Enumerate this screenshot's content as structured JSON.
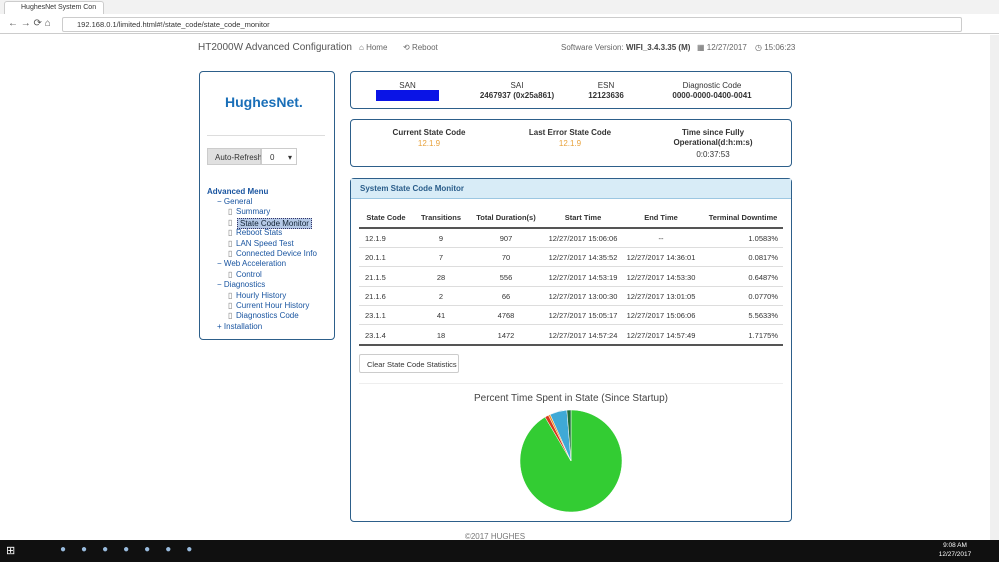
{
  "browser": {
    "tab_title": "HughesNet System Con",
    "url": "192.168.0.1/limited.html#!/state_code/state_code_monitor"
  },
  "header": {
    "title": "HT2000W Advanced Configuration",
    "home": "Home",
    "reboot": "Reboot",
    "software_label": "Software Version:",
    "software_version": "WIFI_3.4.3.35 (M)",
    "date": "12/27/2017",
    "time": "15:06:23"
  },
  "sidebar": {
    "logo": "HughesNet.",
    "auto_refresh": "Auto-Refresh",
    "refresh_value": "0",
    "menu_title": "Advanced Menu",
    "menu": [
      {
        "label": "General",
        "items": [
          "Summary",
          "State Code Monitor",
          "Reboot Stats",
          "LAN Speed Test",
          "Connected Device Info"
        ]
      },
      {
        "label": "Web Acceleration",
        "items": [
          "Control"
        ]
      },
      {
        "label": "Diagnostics",
        "items": [
          "Hourly History",
          "Current Hour History",
          "Diagnostics Code"
        ]
      },
      {
        "label": "Installation"
      }
    ]
  },
  "info": {
    "san_label": "SAN",
    "sai_label": "SAI",
    "sai": "2467937 (0x25a861)",
    "esn_label": "ESN",
    "esn": "12123636",
    "diag_label": "Diagnostic Code",
    "diag": "0000-0000-0400-0041"
  },
  "status": {
    "current_label": "Current State Code",
    "current": "12.1.9",
    "last_error_label": "Last Error State Code",
    "last_error": "12.1.9",
    "since_label": "Time since Fully Operational(d:h:m:s)",
    "since": "0:0:37:53"
  },
  "monitor": {
    "title": "System State Code Monitor",
    "button": "Clear State Code Statistics",
    "columns": [
      "State Code",
      "Transitions",
      "Total Duration(s)",
      "Start Time",
      "End Time",
      "Terminal Downtime"
    ],
    "rows": [
      [
        "12.1.9",
        "9",
        "907",
        "12/27/2017 15:06:06",
        "--",
        "1.0583%"
      ],
      [
        "20.1.1",
        "7",
        "70",
        "12/27/2017 14:35:52",
        "12/27/2017 14:36:01",
        "0.0817%"
      ],
      [
        "21.1.5",
        "28",
        "556",
        "12/27/2017 14:53:19",
        "12/27/2017 14:53:30",
        "0.6487%"
      ],
      [
        "21.1.6",
        "2",
        "66",
        "12/27/2017 13:00:30",
        "12/27/2017 13:01:05",
        "0.0770%"
      ],
      [
        "23.1.1",
        "41",
        "4768",
        "12/27/2017 15:05:17",
        "12/27/2017 15:06:06",
        "5.5633%"
      ],
      [
        "23.1.4",
        "18",
        "1472",
        "12/27/2017 14:57:24",
        "12/27/2017 14:57:49",
        "1.7175%"
      ]
    ]
  },
  "chart_data": {
    "type": "pie",
    "title": "Percent Time Spent in State (Since Startup)",
    "values": [
      91.5,
      1.2,
      0.6,
      5.4,
      1.3
    ],
    "colors": [
      "#33cc33",
      "#d9381e",
      "#f08c1a",
      "#3fa9d6",
      "#1f6e3a"
    ]
  },
  "footer": "©2017 HUGHES",
  "taskbar": {
    "time": "9:08 AM",
    "date": "12/27/2017"
  }
}
